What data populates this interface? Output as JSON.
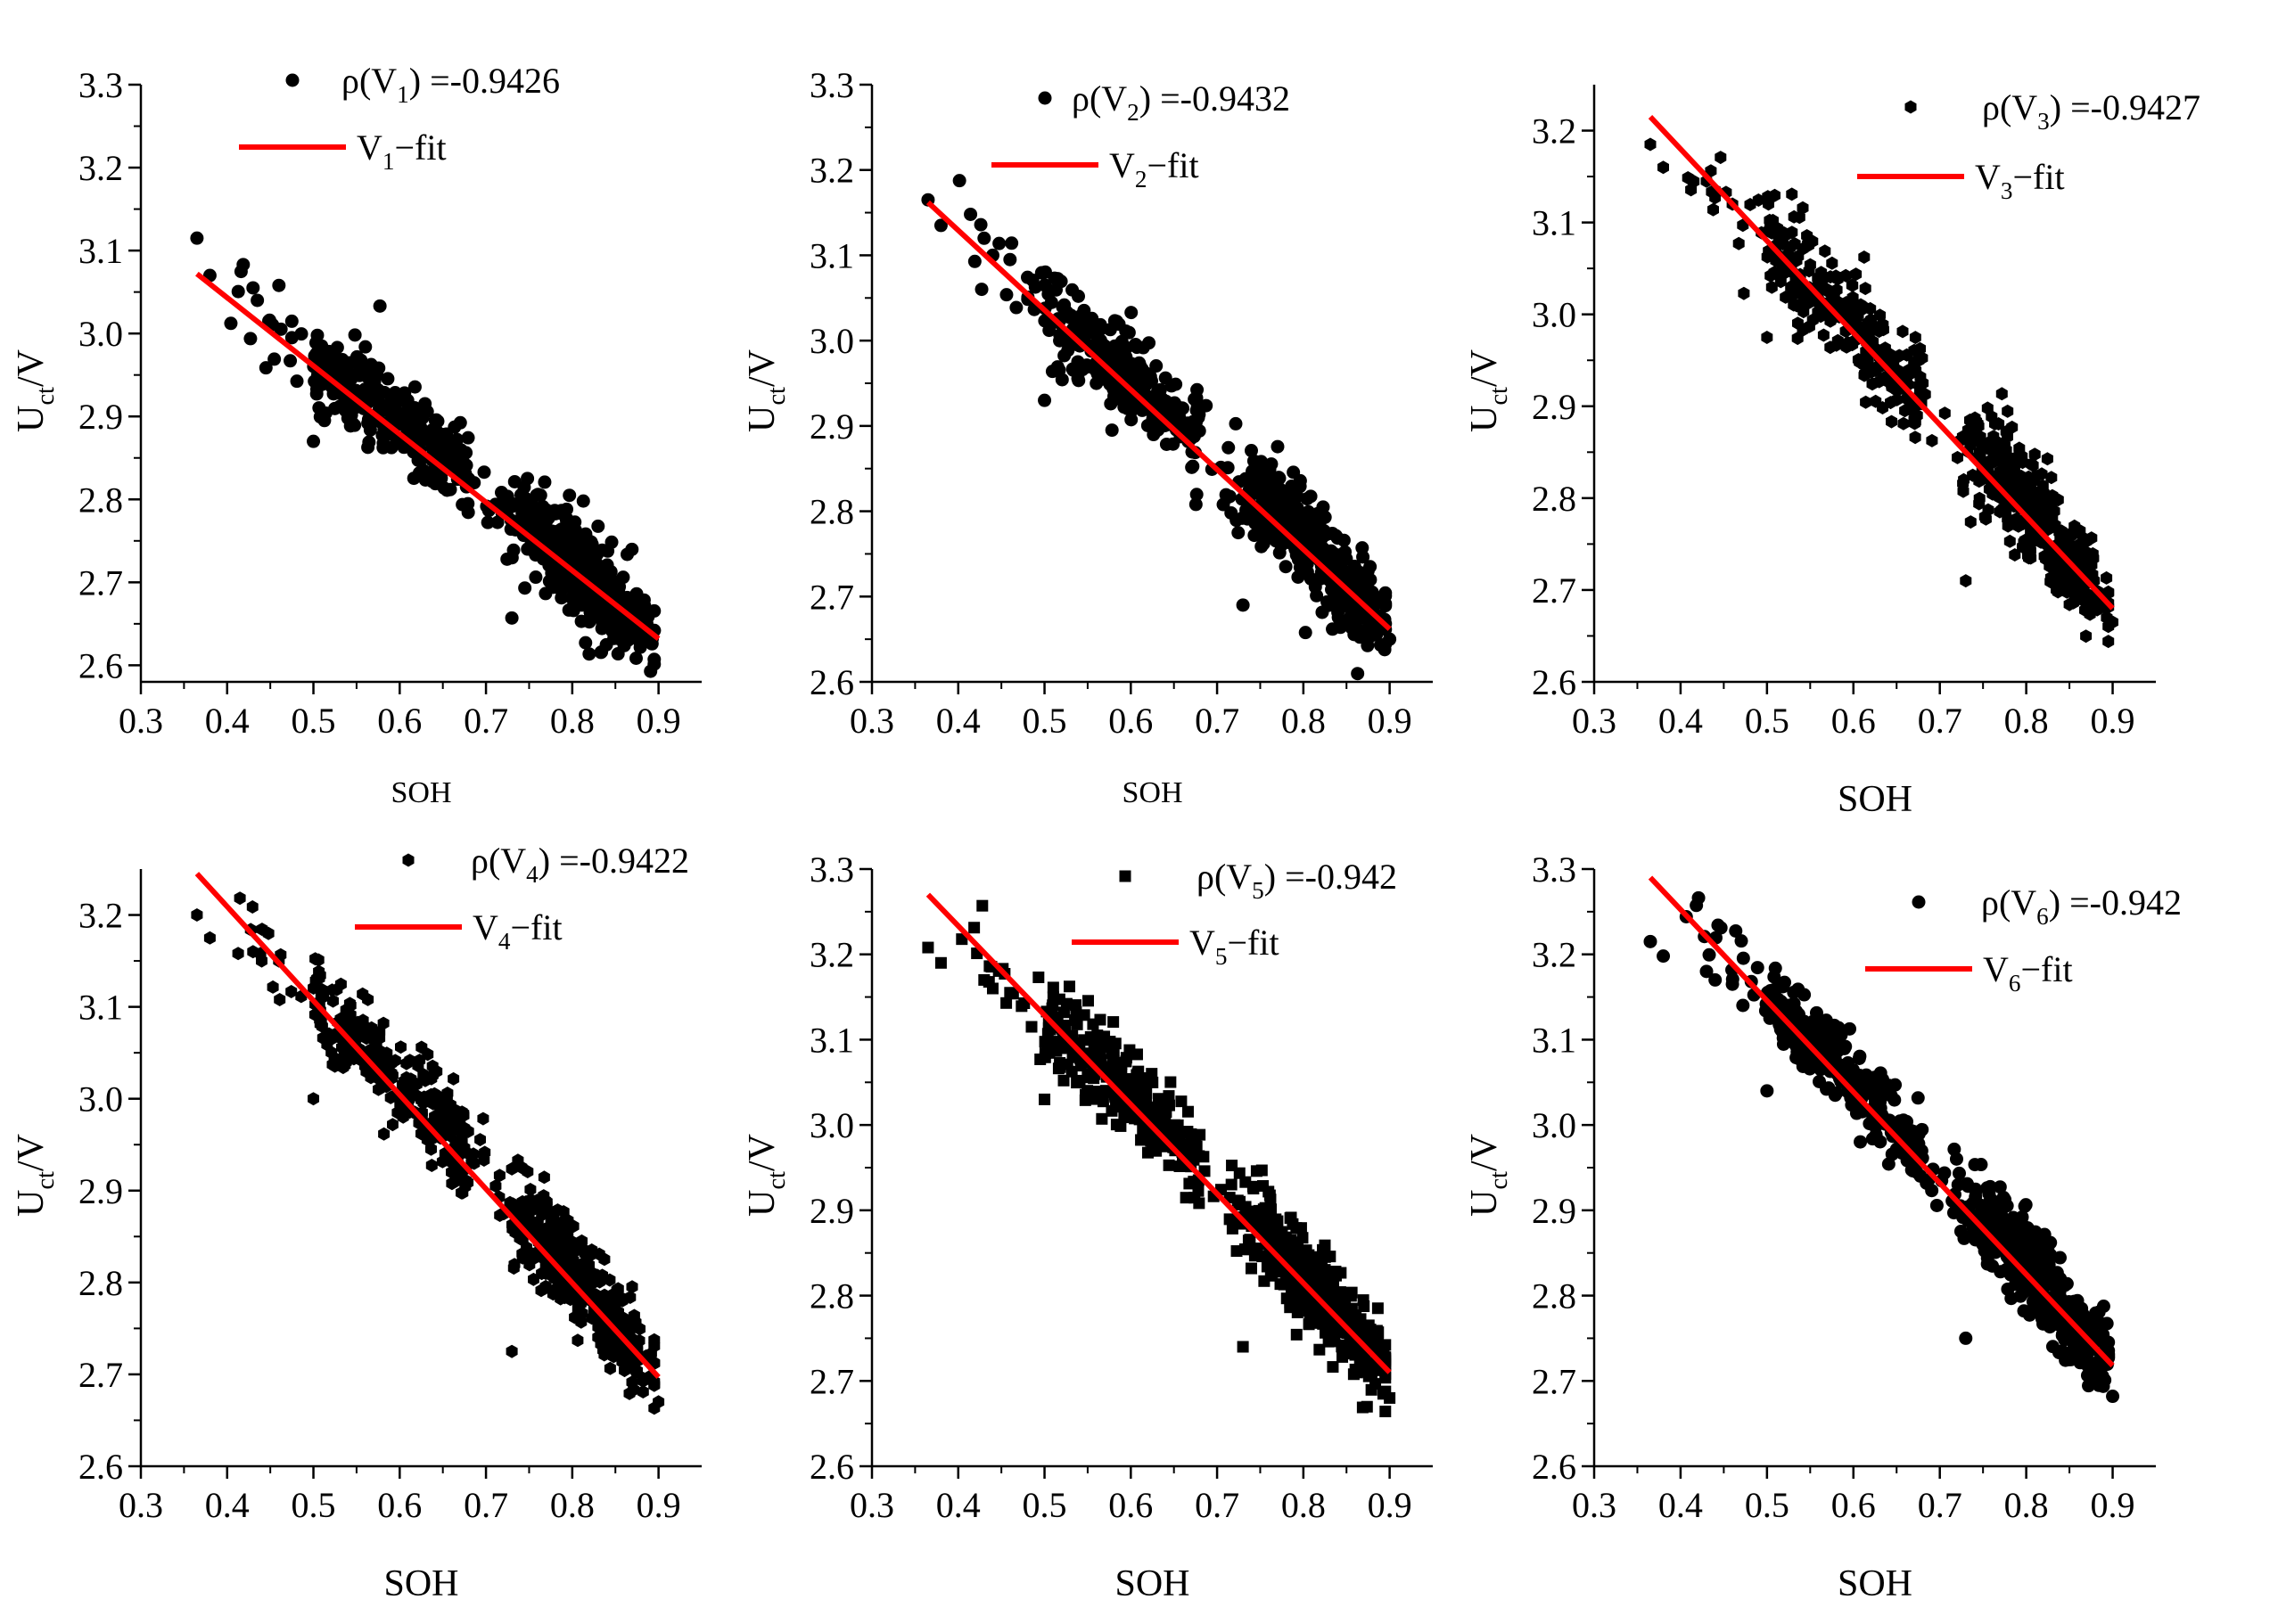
{
  "colors": {
    "points": "#000000",
    "fit": "#ff0000",
    "axis": "#000000",
    "background": "#ffffff"
  },
  "chart_data": [
    {
      "type": "scatter",
      "id": "V1",
      "xlabel": "SOH",
      "ylabel": {
        "main": "U",
        "sub": "ct",
        "tail": "/V"
      },
      "xlim": [
        0.3,
        0.95
      ],
      "ylim": [
        2.58,
        3.3
      ],
      "xticks": [
        "0.3",
        "0.4",
        "0.5",
        "0.6",
        "0.7",
        "0.8",
        "0.9"
      ],
      "yticks": [
        "2.6",
        "2.7",
        "2.8",
        "2.9",
        "3.0",
        "3.1",
        "3.2",
        "3.3"
      ],
      "marker": "circle",
      "legend": {
        "points": {
          "pre": "ρ(V",
          "sub": "1",
          "post": ") =-0.9426"
        },
        "fit": {
          "pre": "V",
          "sub": "1",
          "post": "−fit"
        }
      },
      "fit_line": {
        "x": [
          0.365,
          0.9
        ],
        "y": [
          3.072,
          2.632
        ]
      },
      "points": [
        [
          0.365,
          3.115
        ],
        [
          0.38,
          3.07
        ],
        [
          0.43,
          3.055
        ],
        [
          0.435,
          3.04
        ],
        [
          0.46,
          3.058
        ],
        [
          0.475,
          2.995
        ],
        [
          0.73,
          2.657
        ],
        [
          0.5,
          2.87
        ],
        [
          0.89,
          2.632
        ]
      ]
    },
    {
      "type": "scatter",
      "id": "V2",
      "xlabel": "SOH",
      "ylabel": {
        "main": "U",
        "sub": "ct",
        "tail": "/V"
      },
      "xlim": [
        0.3,
        0.95
      ],
      "ylim": [
        2.6,
        3.3
      ],
      "xticks": [
        "0.3",
        "0.4",
        "0.5",
        "0.6",
        "0.7",
        "0.8",
        "0.9"
      ],
      "yticks": [
        "2.6",
        "2.7",
        "2.8",
        "2.9",
        "3.0",
        "3.1",
        "3.2",
        "3.3"
      ],
      "marker": "circle",
      "legend": {
        "points": {
          "pre": "ρ(V",
          "sub": "2",
          "post": ") =-0.9432"
        },
        "fit": {
          "pre": "V",
          "sub": "2",
          "post": "−fit"
        }
      },
      "fit_line": {
        "x": [
          0.365,
          0.9
        ],
        "y": [
          3.162,
          2.662
        ]
      },
      "points": [
        [
          0.365,
          3.165
        ],
        [
          0.38,
          3.135
        ],
        [
          0.43,
          3.12
        ],
        [
          0.44,
          3.1
        ],
        [
          0.46,
          3.095
        ],
        [
          0.73,
          2.69
        ],
        [
          0.5,
          2.93
        ],
        [
          0.9,
          2.65
        ]
      ]
    },
    {
      "type": "scatter",
      "id": "V3",
      "xlabel": "SOH",
      "ylabel": {
        "main": "U",
        "sub": "ct",
        "tail": "/V"
      },
      "xlim": [
        0.3,
        0.95
      ],
      "ylim": [
        2.6,
        3.25
      ],
      "xticks": [
        "0.3",
        "0.4",
        "0.5",
        "0.6",
        "0.7",
        "0.8",
        "0.9"
      ],
      "yticks": [
        "2.6",
        "2.7",
        "2.8",
        "2.9",
        "3.0",
        "3.1",
        "3.2"
      ],
      "marker": "hexagon",
      "legend": {
        "points": {
          "pre": "ρ(V",
          "sub": "3",
          "post": ") =-0.9427"
        },
        "fit": {
          "pre": "V",
          "sub": "3",
          "post": "−fit"
        }
      },
      "fit_line": {
        "x": [
          0.365,
          0.9
        ],
        "y": [
          3.215,
          2.68
        ]
      },
      "points": [
        [
          0.365,
          3.185
        ],
        [
          0.38,
          3.16
        ],
        [
          0.43,
          3.145
        ],
        [
          0.44,
          3.135
        ],
        [
          0.46,
          3.12
        ],
        [
          0.73,
          2.71
        ],
        [
          0.5,
          2.975
        ],
        [
          0.9,
          2.665
        ]
      ]
    },
    {
      "type": "scatter",
      "id": "V4",
      "xlabel": "SOH",
      "ylabel": {
        "main": "U",
        "sub": "ct",
        "tail": "/V"
      },
      "xlim": [
        0.3,
        0.95
      ],
      "ylim": [
        2.6,
        3.25
      ],
      "xticks": [
        "0.3",
        "0.4",
        "0.5",
        "0.6",
        "0.7",
        "0.8",
        "0.9"
      ],
      "yticks": [
        "2.6",
        "2.7",
        "2.8",
        "2.9",
        "3.0",
        "3.1",
        "3.2"
      ],
      "marker": "hexagon",
      "legend": {
        "points": {
          "pre": "ρ(V",
          "sub": "4",
          "post": ") =-0.9422"
        },
        "fit": {
          "pre": "V",
          "sub": "4",
          "post": "−fit"
        }
      },
      "fit_line": {
        "x": [
          0.365,
          0.9
        ],
        "y": [
          3.245,
          2.697
        ]
      },
      "points": [
        [
          0.365,
          3.2
        ],
        [
          0.38,
          3.175
        ],
        [
          0.43,
          3.16
        ],
        [
          0.44,
          3.15
        ],
        [
          0.46,
          3.15
        ],
        [
          0.73,
          2.725
        ],
        [
          0.5,
          3.0
        ],
        [
          0.9,
          2.67
        ]
      ]
    },
    {
      "type": "scatter",
      "id": "V5",
      "xlabel": "SOH",
      "ylabel": {
        "main": "U",
        "sub": "ct",
        "tail": "/V"
      },
      "xlim": [
        0.3,
        0.95
      ],
      "ylim": [
        2.6,
        3.3
      ],
      "xticks": [
        "0.3",
        "0.4",
        "0.5",
        "0.6",
        "0.7",
        "0.8",
        "0.9"
      ],
      "yticks": [
        "2.6",
        "2.7",
        "2.8",
        "2.9",
        "3.0",
        "3.1",
        "3.2",
        "3.3"
      ],
      "marker": "square",
      "legend": {
        "points": {
          "pre": "ρ(V",
          "sub": "5",
          "post": ") =-0.942"
        },
        "fit": {
          "pre": "V",
          "sub": "5",
          "post": "−fit"
        }
      },
      "fit_line": {
        "x": [
          0.365,
          0.9
        ],
        "y": [
          3.27,
          2.71
        ]
      },
      "points": [
        [
          0.365,
          3.208
        ],
        [
          0.38,
          3.19
        ],
        [
          0.43,
          3.17
        ],
        [
          0.44,
          3.16
        ],
        [
          0.46,
          3.155
        ],
        [
          0.73,
          2.74
        ],
        [
          0.5,
          3.03
        ],
        [
          0.9,
          2.68
        ]
      ]
    },
    {
      "type": "scatter",
      "id": "V6",
      "xlabel": "SOH",
      "ylabel": {
        "main": "U",
        "sub": "ct",
        "tail": "/V"
      },
      "xlim": [
        0.3,
        0.95
      ],
      "ylim": [
        2.6,
        3.3
      ],
      "xticks": [
        "0.3",
        "0.4",
        "0.5",
        "0.6",
        "0.7",
        "0.8",
        "0.9"
      ],
      "yticks": [
        "2.6",
        "2.7",
        "2.8",
        "2.9",
        "3.0",
        "3.1",
        "3.2",
        "3.3"
      ],
      "marker": "circle",
      "legend": {
        "points": {
          "pre": "ρ(V",
          "sub": "6",
          "post": ") =-0.942"
        },
        "fit": {
          "pre": "V",
          "sub": "6",
          "post": "−fit"
        }
      },
      "fit_line": {
        "x": [
          0.365,
          0.9
        ],
        "y": [
          3.29,
          2.718
        ]
      },
      "points": [
        [
          0.365,
          3.215
        ],
        [
          0.38,
          3.198
        ],
        [
          0.43,
          3.18
        ],
        [
          0.44,
          3.17
        ],
        [
          0.46,
          3.165
        ],
        [
          0.73,
          2.75
        ],
        [
          0.5,
          3.04
        ],
        [
          0.9,
          2.682
        ]
      ]
    }
  ]
}
